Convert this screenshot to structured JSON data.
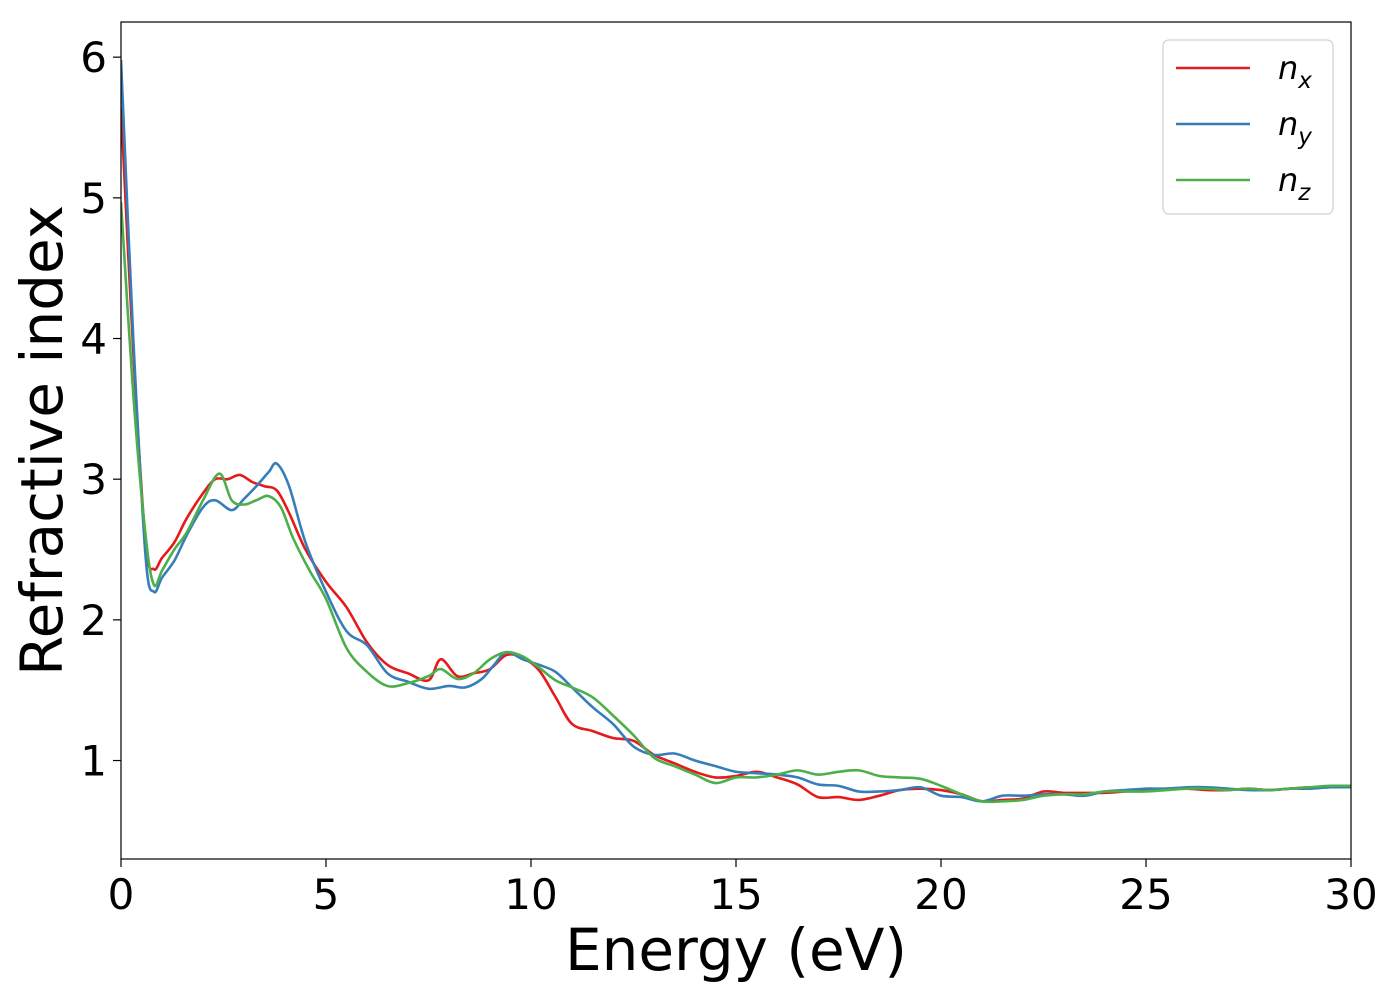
{
  "chart_data": {
    "type": "line",
    "title": "",
    "xlabel": "Energy (eV)",
    "ylabel": "Refractive index",
    "xlim": [
      0,
      30
    ],
    "ylim": [
      0.3,
      6.25
    ],
    "xticks": [
      0,
      5,
      10,
      15,
      20,
      25,
      30
    ],
    "yticks": [
      1,
      2,
      3,
      4,
      5,
      6
    ],
    "xtick_labels": [
      "0",
      "5",
      "10",
      "15",
      "20",
      "25",
      "30"
    ],
    "ytick_labels": [
      "1",
      "2",
      "3",
      "4",
      "5",
      "6"
    ],
    "grid": false,
    "legend_position": "top-right",
    "series": [
      {
        "name": "n_x",
        "label_main": "n",
        "label_sub": "x",
        "color": "#e41a1c",
        "x": [
          0,
          0.3,
          0.6,
          0.8,
          1.0,
          1.3,
          1.6,
          2.0,
          2.3,
          2.6,
          2.9,
          3.2,
          3.5,
          3.8,
          4.1,
          4.5,
          5.0,
          5.5,
          6.0,
          6.5,
          7.0,
          7.5,
          7.8,
          8.2,
          8.6,
          9.0,
          9.4,
          9.8,
          10.2,
          10.6,
          11.0,
          11.5,
          12.0,
          12.5,
          13.0,
          13.5,
          14.0,
          14.5,
          15.0,
          15.5,
          16.0,
          16.5,
          17.0,
          17.5,
          18.0,
          18.5,
          19.0,
          19.5,
          20.0,
          20.5,
          21.0,
          21.5,
          22.0,
          22.5,
          23.0,
          23.5,
          24.0,
          24.5,
          25.0,
          25.5,
          26.0,
          26.5,
          27.0,
          27.5,
          28.0,
          28.5,
          29.0,
          29.5,
          30.0
        ],
        "y": [
          5.65,
          3.9,
          2.55,
          2.36,
          2.44,
          2.55,
          2.72,
          2.9,
          3.0,
          3.0,
          3.03,
          2.98,
          2.95,
          2.92,
          2.76,
          2.5,
          2.27,
          2.09,
          1.84,
          1.68,
          1.62,
          1.57,
          1.72,
          1.6,
          1.62,
          1.65,
          1.75,
          1.73,
          1.64,
          1.45,
          1.26,
          1.21,
          1.16,
          1.14,
          1.04,
          0.98,
          0.92,
          0.88,
          0.89,
          0.92,
          0.88,
          0.83,
          0.74,
          0.74,
          0.72,
          0.75,
          0.79,
          0.8,
          0.79,
          0.76,
          0.71,
          0.72,
          0.73,
          0.78,
          0.77,
          0.77,
          0.77,
          0.78,
          0.79,
          0.8,
          0.8,
          0.79,
          0.79,
          0.8,
          0.79,
          0.8,
          0.81,
          0.81,
          0.82
        ]
      },
      {
        "name": "n_y",
        "label_main": "n",
        "label_sub": "y",
        "color": "#377eb8",
        "x": [
          0,
          0.3,
          0.6,
          0.8,
          1.0,
          1.3,
          1.6,
          2.0,
          2.3,
          2.7,
          3.0,
          3.3,
          3.6,
          3.8,
          4.1,
          4.5,
          5.0,
          5.5,
          6.0,
          6.5,
          7.0,
          7.5,
          8.0,
          8.4,
          8.8,
          9.1,
          9.4,
          9.8,
          10.2,
          10.6,
          11.0,
          11.5,
          12.0,
          12.5,
          13.0,
          13.5,
          14.0,
          14.5,
          15.0,
          15.5,
          16.0,
          16.5,
          17.0,
          17.5,
          18.0,
          18.5,
          19.0,
          19.5,
          20.0,
          20.5,
          21.0,
          21.5,
          22.0,
          22.5,
          23.0,
          23.5,
          24.0,
          24.5,
          25.0,
          25.5,
          26.0,
          26.5,
          27.0,
          27.5,
          28.0,
          28.5,
          29.0,
          29.5,
          30.0
        ],
        "y": [
          5.98,
          4.0,
          2.45,
          2.2,
          2.3,
          2.42,
          2.6,
          2.8,
          2.85,
          2.78,
          2.86,
          2.95,
          3.05,
          3.11,
          2.95,
          2.55,
          2.2,
          1.92,
          1.82,
          1.62,
          1.56,
          1.51,
          1.53,
          1.52,
          1.58,
          1.68,
          1.77,
          1.72,
          1.68,
          1.63,
          1.52,
          1.38,
          1.26,
          1.1,
          1.04,
          1.05,
          1.0,
          0.96,
          0.92,
          0.91,
          0.9,
          0.88,
          0.83,
          0.82,
          0.78,
          0.78,
          0.79,
          0.81,
          0.75,
          0.74,
          0.71,
          0.75,
          0.75,
          0.76,
          0.76,
          0.75,
          0.78,
          0.79,
          0.8,
          0.8,
          0.81,
          0.81,
          0.8,
          0.79,
          0.79,
          0.8,
          0.8,
          0.81,
          0.81
        ]
      },
      {
        "name": "n_z",
        "label_main": "n",
        "label_sub": "z",
        "color": "#4daf4a",
        "x": [
          0,
          0.3,
          0.6,
          0.8,
          1.0,
          1.3,
          1.6,
          2.0,
          2.4,
          2.7,
          3.0,
          3.3,
          3.6,
          3.9,
          4.2,
          4.6,
          5.0,
          5.5,
          6.0,
          6.5,
          7.0,
          7.5,
          7.8,
          8.2,
          8.6,
          9.0,
          9.4,
          9.8,
          10.2,
          10.6,
          11.0,
          11.5,
          12.0,
          12.5,
          13.0,
          13.5,
          14.0,
          14.5,
          15.0,
          15.5,
          16.0,
          16.5,
          17.0,
          17.5,
          18.0,
          18.5,
          19.0,
          19.5,
          20.0,
          20.5,
          21.0,
          21.5,
          22.0,
          22.5,
          23.0,
          23.5,
          24.0,
          24.5,
          25.0,
          25.5,
          26.0,
          26.5,
          27.0,
          27.5,
          28.0,
          28.5,
          29.0,
          29.5,
          30.0
        ],
        "y": [
          4.97,
          3.6,
          2.6,
          2.25,
          2.35,
          2.5,
          2.62,
          2.85,
          3.04,
          2.85,
          2.82,
          2.85,
          2.88,
          2.8,
          2.58,
          2.35,
          2.15,
          1.8,
          1.63,
          1.53,
          1.55,
          1.6,
          1.65,
          1.58,
          1.62,
          1.72,
          1.77,
          1.74,
          1.66,
          1.57,
          1.52,
          1.45,
          1.32,
          1.18,
          1.02,
          0.96,
          0.9,
          0.84,
          0.88,
          0.88,
          0.9,
          0.93,
          0.9,
          0.92,
          0.93,
          0.89,
          0.88,
          0.87,
          0.82,
          0.76,
          0.71,
          0.71,
          0.72,
          0.75,
          0.76,
          0.76,
          0.78,
          0.78,
          0.78,
          0.79,
          0.8,
          0.8,
          0.79,
          0.8,
          0.79,
          0.8,
          0.81,
          0.82,
          0.82
        ]
      }
    ]
  }
}
